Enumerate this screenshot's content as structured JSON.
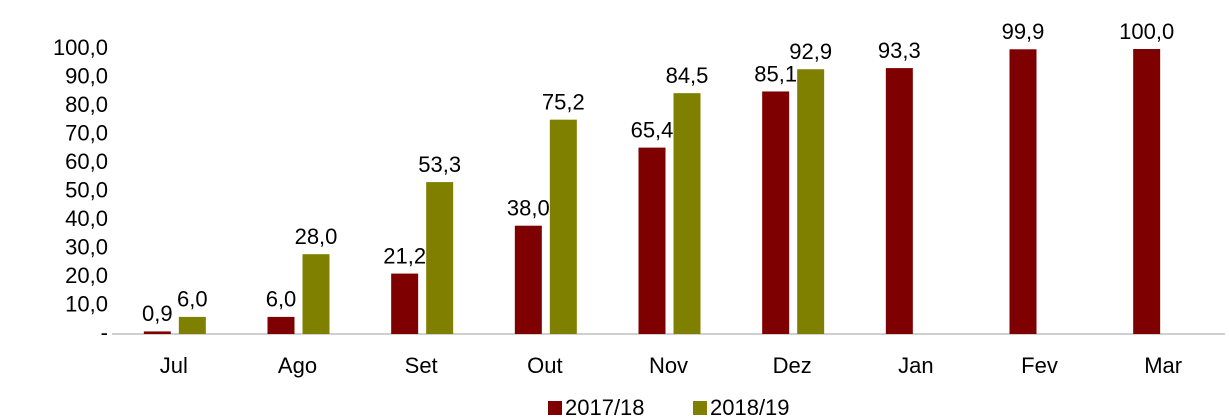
{
  "chart_data": {
    "type": "bar",
    "categories": [
      "Jul",
      "Ago",
      "Set",
      "Out",
      "Nov",
      "Dez",
      "Jan",
      "Fev",
      "Mar"
    ],
    "series": [
      {
        "name": "2017/18",
        "color": "#7f0000",
        "values": [
          0.9,
          6.0,
          21.2,
          38.0,
          65.4,
          85.1,
          93.3,
          99.9,
          100.0
        ],
        "value_labels": [
          "0,9",
          "6,0",
          "21,2",
          "38,0",
          "65,4",
          "85,1",
          "93,3",
          "99,9",
          "100,0"
        ]
      },
      {
        "name": "2018/19",
        "color": "#808000",
        "values": [
          6.0,
          28.0,
          53.3,
          75.2,
          84.5,
          92.9,
          null,
          null,
          null
        ],
        "value_labels": [
          "6,0",
          "28,0",
          "53,3",
          "75,2",
          "84,5",
          "92,9",
          null,
          null,
          null
        ]
      }
    ],
    "ylim": [
      0,
      100
    ],
    "yticks": [
      {
        "value": 0,
        "label": "-"
      },
      {
        "value": 10,
        "label": "10,0"
      },
      {
        "value": 20,
        "label": "20,0"
      },
      {
        "value": 30,
        "label": "30,0"
      },
      {
        "value": 40,
        "label": "40,0"
      },
      {
        "value": 50,
        "label": "50,0"
      },
      {
        "value": 60,
        "label": "60,0"
      },
      {
        "value": 70,
        "label": "70,0"
      },
      {
        "value": 80,
        "label": "80,0"
      },
      {
        "value": 90,
        "label": "90,0"
      },
      {
        "value": 100,
        "label": "100,0"
      }
    ],
    "legend": "bottom"
  }
}
